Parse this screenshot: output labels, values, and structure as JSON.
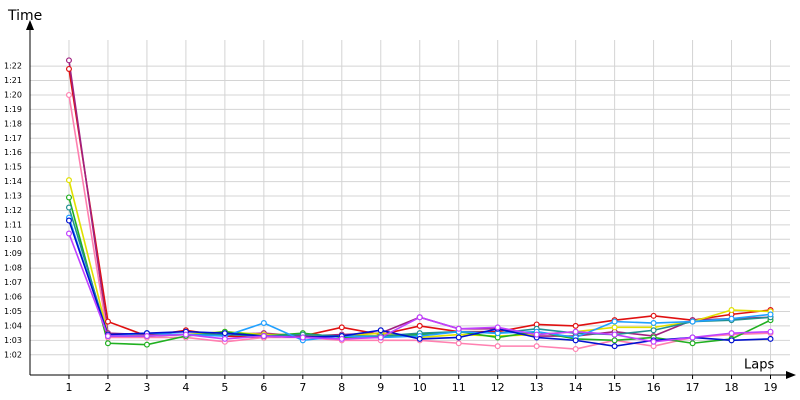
{
  "chart_data": {
    "type": "line",
    "y_label": "Time",
    "x_label": "Laps",
    "x": [
      1,
      2,
      3,
      4,
      5,
      6,
      7,
      8,
      9,
      10,
      11,
      12,
      13,
      14,
      15,
      16,
      17,
      18,
      19
    ],
    "xlim": [
      0,
      19.5
    ],
    "xticks": [
      1,
      2,
      3,
      4,
      5,
      6,
      7,
      8,
      9,
      10,
      11,
      12,
      13,
      14,
      15,
      16,
      17,
      18,
      19
    ],
    "ylim": [
      60.6,
      84.5
    ],
    "yticks": [
      {
        "value": 62,
        "label": "1:02"
      },
      {
        "value": 63,
        "label": "1:03"
      },
      {
        "value": 64,
        "label": "1:04"
      },
      {
        "value": 65,
        "label": "1:05"
      },
      {
        "value": 66,
        "label": "1:06"
      },
      {
        "value": 67,
        "label": "1:07"
      },
      {
        "value": 68,
        "label": "1:08"
      },
      {
        "value": 69,
        "label": "1:09"
      },
      {
        "value": 70,
        "label": "1:10"
      },
      {
        "value": 71,
        "label": "1:11"
      },
      {
        "value": 72,
        "label": "1:12"
      },
      {
        "value": 73,
        "label": "1:13"
      },
      {
        "value": 74,
        "label": "1:14"
      },
      {
        "value": 75,
        "label": "1:15"
      },
      {
        "value": 76,
        "label": "1:16"
      },
      {
        "value": 77,
        "label": "1:17"
      },
      {
        "value": 78,
        "label": "1:18"
      },
      {
        "value": 79,
        "label": "1:19"
      },
      {
        "value": 80,
        "label": "1:20"
      },
      {
        "value": 81,
        "label": "1:21"
      },
      {
        "value": 82,
        "label": "1:22"
      }
    ],
    "grid": true,
    "series": [
      {
        "color": "#e01010",
        "values": [
          81.8,
          64.3,
          63.3,
          63.7,
          63.3,
          63.2,
          63.3,
          63.9,
          63.4,
          64.0,
          63.6,
          63.6,
          64.1,
          64.0,
          64.4,
          64.7,
          64.4,
          64.8,
          65.1
        ]
      },
      {
        "color": "#a02080",
        "values": [
          82.4,
          63.5,
          63.4,
          63.4,
          63.4,
          63.5,
          63.3,
          63.4,
          63.5,
          64.6,
          63.8,
          63.8,
          63.3,
          63.3,
          63.6,
          63.3,
          64.4,
          64.5,
          64.6
        ]
      },
      {
        "color": "#ff80b0",
        "values": [
          80.0,
          63.2,
          63.2,
          63.2,
          62.9,
          63.2,
          63.2,
          63.0,
          63.0,
          63.0,
          62.8,
          62.6,
          62.6,
          62.4,
          63.0,
          62.6,
          63.2,
          63.4,
          63.5
        ]
      },
      {
        "color": "#e0e000",
        "values": [
          74.1,
          63.4,
          63.3,
          63.4,
          63.6,
          63.4,
          63.4,
          63.3,
          63.5,
          63.2,
          63.4,
          63.3,
          63.4,
          63.6,
          63.9,
          63.9,
          64.3,
          65.1,
          65.0
        ]
      },
      {
        "color": "#20b020",
        "values": [
          72.9,
          62.8,
          62.7,
          63.3,
          63.6,
          63.3,
          63.5,
          63.2,
          63.2,
          63.4,
          63.6,
          63.2,
          63.6,
          63.1,
          63.0,
          63.2,
          62.8,
          63.1,
          64.4
        ]
      },
      {
        "color": "#209090",
        "values": [
          72.2,
          63.3,
          63.3,
          63.4,
          63.4,
          63.3,
          63.4,
          63.3,
          63.3,
          63.5,
          63.6,
          63.5,
          63.8,
          63.5,
          63.4,
          63.7,
          64.3,
          64.4,
          64.6
        ]
      },
      {
        "color": "#20a0ff",
        "values": [
          71.5,
          63.3,
          63.5,
          63.4,
          63.3,
          64.2,
          63.0,
          63.3,
          63.2,
          63.3,
          63.6,
          63.5,
          63.6,
          63.2,
          64.3,
          64.2,
          64.3,
          64.5,
          64.8
        ]
      },
      {
        "color": "#0010d0",
        "values": [
          71.3,
          63.4,
          63.5,
          63.6,
          63.5,
          63.3,
          63.2,
          63.3,
          63.7,
          63.1,
          63.2,
          63.8,
          63.2,
          63.0,
          62.6,
          63.0,
          63.2,
          63.0,
          63.1
        ]
      },
      {
        "color": "#c040ff",
        "values": [
          70.4,
          63.3,
          63.3,
          63.4,
          63.1,
          63.3,
          63.2,
          63.1,
          63.2,
          64.6,
          63.8,
          63.9,
          63.4,
          63.6,
          63.4,
          62.9,
          63.2,
          63.5,
          63.6
        ]
      }
    ]
  }
}
